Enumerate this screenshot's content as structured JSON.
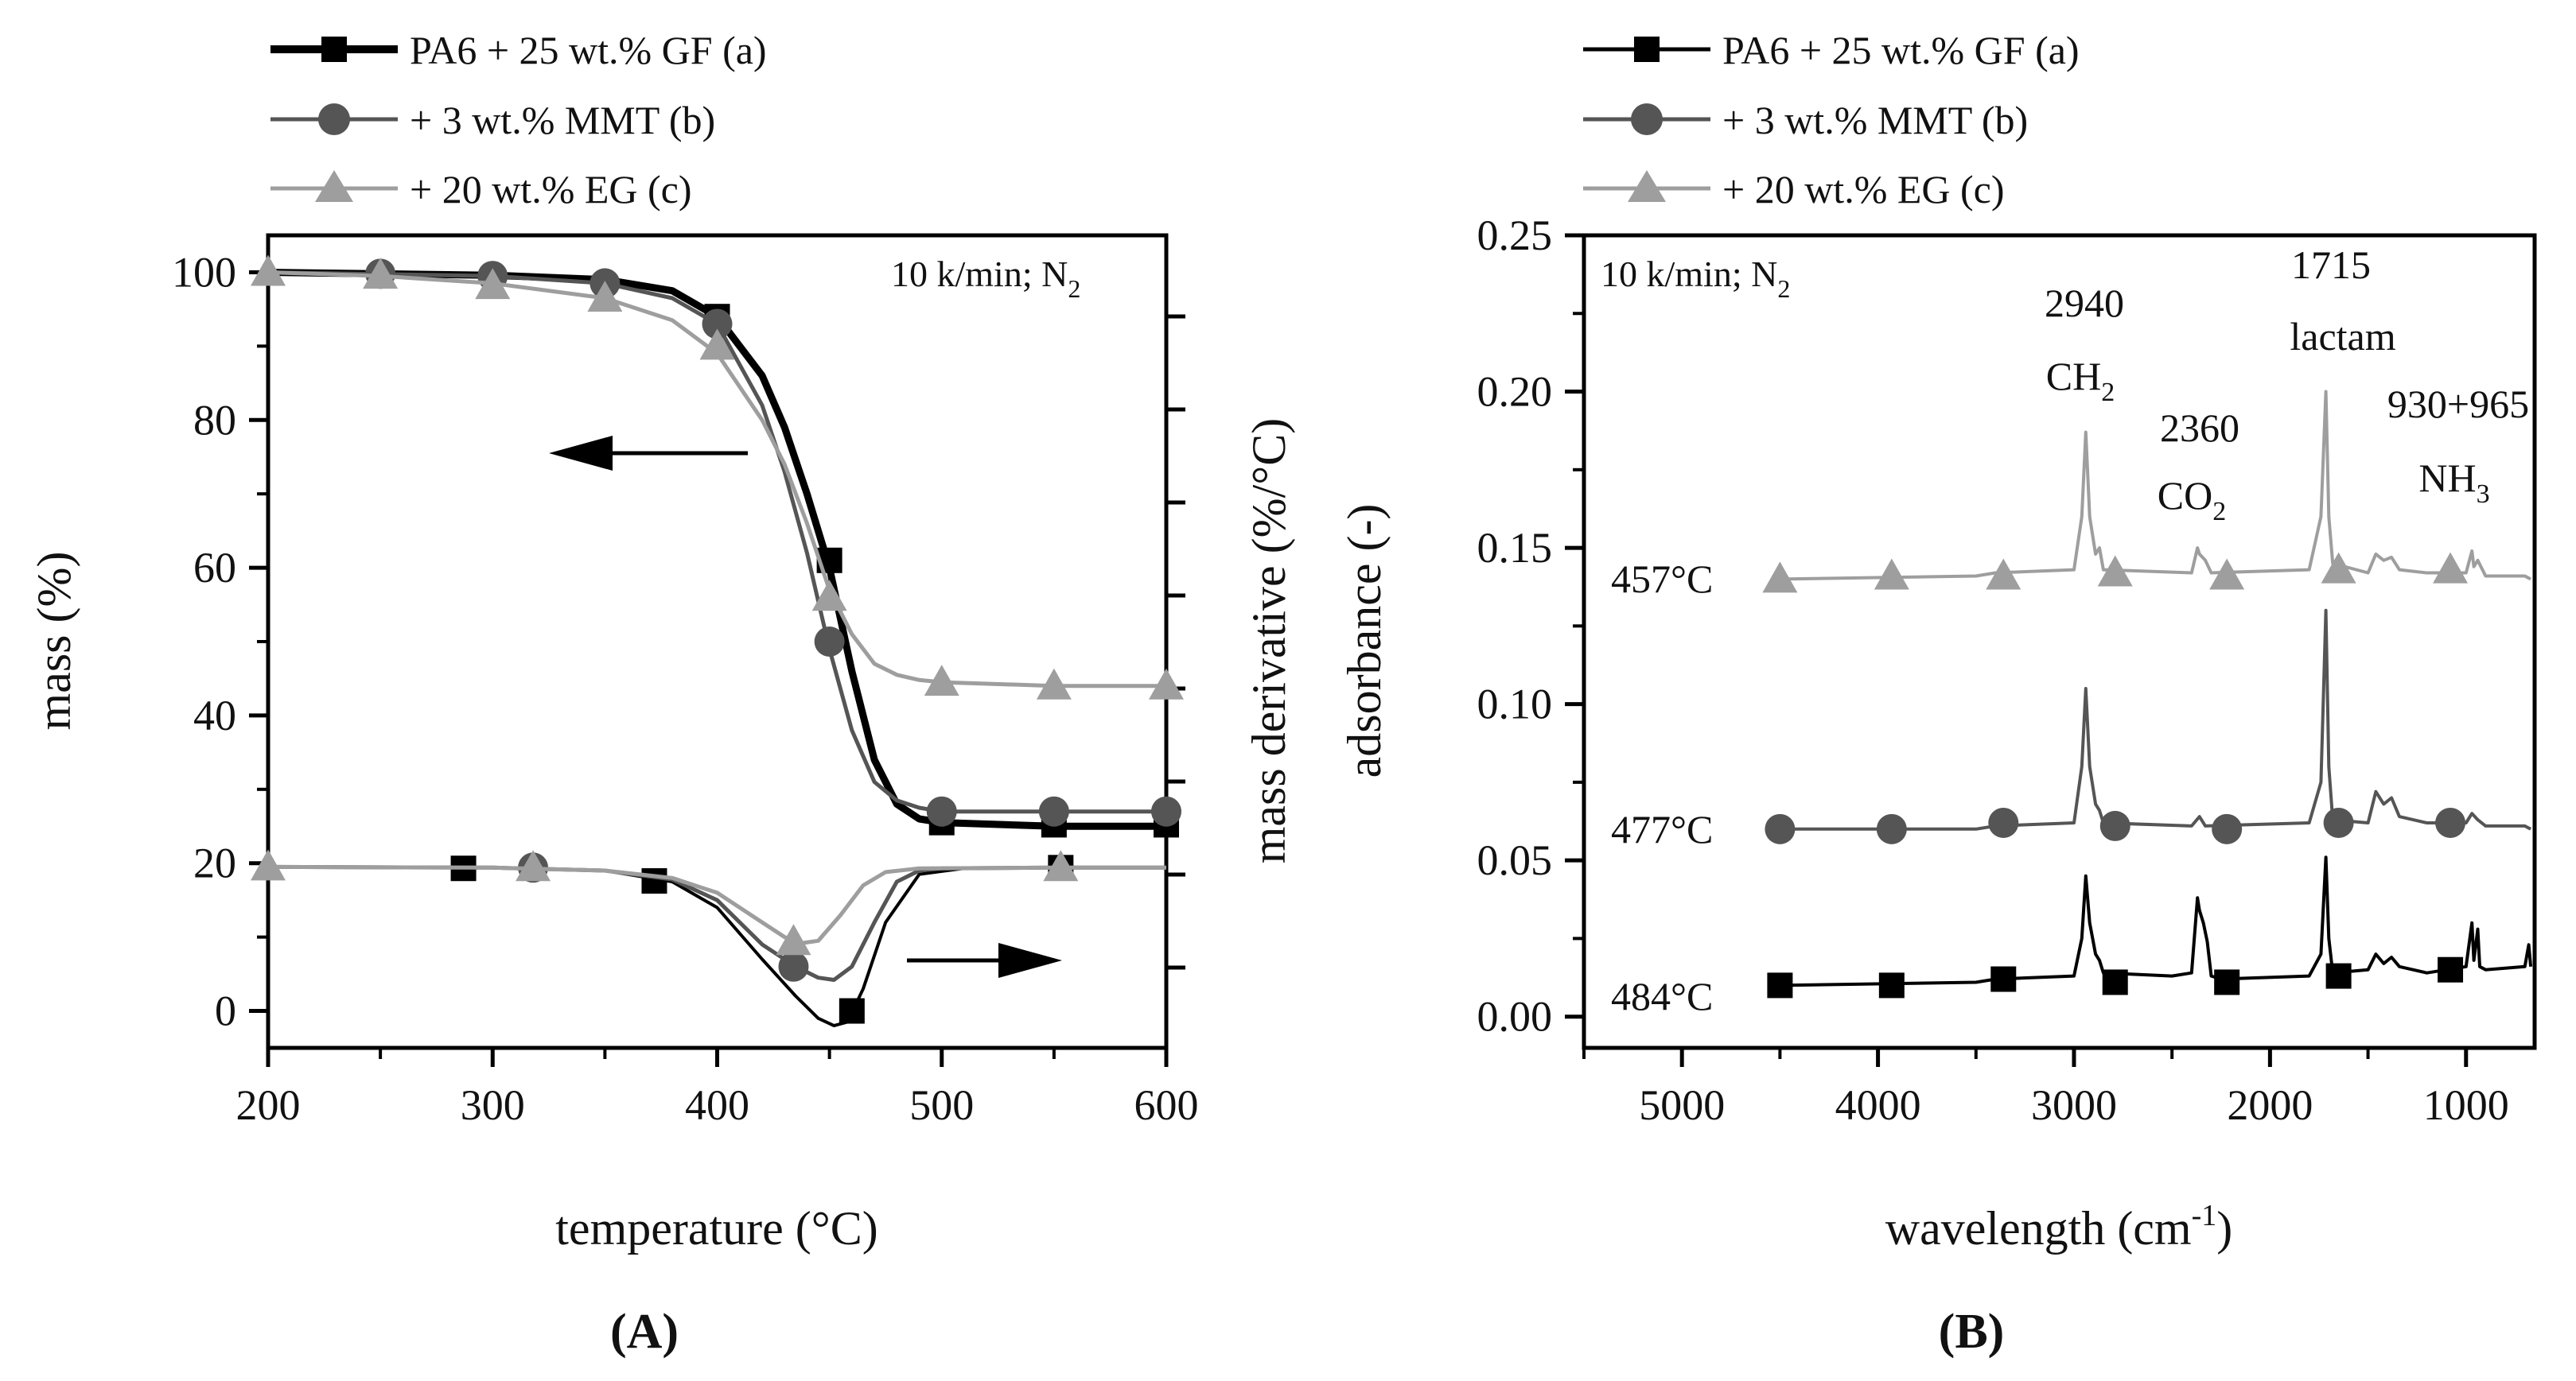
{
  "chart_data": [
    {
      "id": "A",
      "type": "line",
      "panel_label": "(A)",
      "title": "",
      "xlabel": "temperature (°C)",
      "ylabel": "mass (%)",
      "y2label": "mass derivative (%/°C)",
      "xlim": [
        200,
        600
      ],
      "ylim": [
        -5,
        105
      ],
      "xticks": [
        "200",
        "300",
        "400",
        "500",
        "600"
      ],
      "yticks": [
        "0",
        "20",
        "40",
        "60",
        "80",
        "100"
      ],
      "annotation": "10 k/min; N",
      "annotation_sub": "2",
      "legend": [
        {
          "name": "PA6 + 25 wt.% GF (a)",
          "color": "#000000",
          "marker": "square"
        },
        {
          "name": "+ 3 wt.% MMT (b)",
          "color": "#555555",
          "marker": "circle"
        },
        {
          "name": "+ 20 wt.% EG (c)",
          "color": "#9e9e9e",
          "marker": "triangle"
        }
      ],
      "series": [
        {
          "name": "PA6 + 25 wt.% GF (a) mass",
          "color": "#000000",
          "marker": "square",
          "x": [
            200,
            300,
            350,
            380,
            400,
            420,
            430,
            440,
            450,
            460,
            470,
            480,
            490,
            500,
            550,
            600
          ],
          "y": [
            100,
            99.6,
            99,
            97.5,
            94,
            86,
            79,
            70,
            60,
            46,
            34,
            28,
            26,
            25.5,
            25,
            25
          ],
          "marker_x": [
            400,
            450,
            500,
            550,
            600
          ],
          "marker_y": [
            94,
            61,
            25.5,
            25.2,
            25.2
          ]
        },
        {
          "name": "+ 3 wt.% MMT (b) mass",
          "color": "#555555",
          "marker": "circle",
          "x": [
            200,
            300,
            350,
            380,
            400,
            420,
            430,
            440,
            450,
            460,
            470,
            480,
            490,
            500,
            550,
            600
          ],
          "y": [
            100,
            99.5,
            98.5,
            96.5,
            93,
            82,
            73,
            62,
            49,
            38,
            31,
            28.5,
            27.5,
            27,
            27,
            27
          ],
          "marker_x": [
            250,
            300,
            350,
            400,
            450,
            500,
            550,
            600
          ],
          "marker_y": [
            99.8,
            99.5,
            98.5,
            93,
            50,
            27,
            27,
            27
          ]
        },
        {
          "name": "+ 20 wt.% EG (c) mass",
          "color": "#9e9e9e",
          "marker": "triangle",
          "x": [
            200,
            250,
            300,
            350,
            380,
            400,
            420,
            430,
            440,
            450,
            460,
            470,
            480,
            490,
            500,
            550,
            600
          ],
          "y": [
            100,
            99.5,
            98.5,
            96.5,
            93.5,
            89,
            80,
            74,
            66,
            57,
            51,
            47,
            45.5,
            44.8,
            44.5,
            44,
            44
          ],
          "marker_x": [
            200,
            250,
            300,
            350,
            400,
            450,
            500,
            550,
            600
          ],
          "marker_y": [
            100,
            99.6,
            98.2,
            96.5,
            90,
            56,
            44.5,
            44,
            44
          ]
        },
        {
          "name": "PA6 + 25 wt.% GF (a) derivative",
          "color": "#000000",
          "marker": "square",
          "x": [
            200,
            300,
            350,
            380,
            400,
            420,
            435,
            445,
            452,
            458,
            465,
            475,
            490,
            510,
            550,
            600
          ],
          "y": [
            19.5,
            19.4,
            19,
            17.5,
            14,
            7,
            2,
            -1,
            -2,
            -1.5,
            3,
            12,
            18.5,
            19.3,
            19.4,
            19.4
          ],
          "marker_x": [
            287,
            372,
            460,
            553
          ],
          "marker_y": [
            19.3,
            17.6,
            0,
            19.4
          ]
        },
        {
          "name": "+ 3 wt.% MMT (b) derivative",
          "color": "#555555",
          "marker": "circle",
          "x": [
            200,
            300,
            350,
            380,
            400,
            420,
            435,
            445,
            452,
            460,
            470,
            480,
            490,
            500,
            550,
            600
          ],
          "y": [
            19.5,
            19.4,
            19,
            17.8,
            15,
            9,
            6,
            4.5,
            4.2,
            6,
            12,
            17.5,
            19,
            19.3,
            19.4,
            19.4
          ],
          "marker_x": [
            318,
            434
          ],
          "marker_y": [
            19.4,
            6
          ]
        },
        {
          "name": "+ 20 wt.% EG (c) derivative",
          "color": "#9e9e9e",
          "marker": "triangle",
          "x": [
            200,
            300,
            350,
            380,
            400,
            420,
            430,
            438,
            445,
            455,
            465,
            475,
            490,
            550,
            600
          ],
          "y": [
            19.5,
            19.4,
            19,
            18,
            16,
            12,
            10,
            9.2,
            9.5,
            13,
            17,
            18.8,
            19.3,
            19.4,
            19.4
          ],
          "marker_x": [
            200,
            318,
            434,
            553
          ],
          "marker_y": [
            19.5,
            19.4,
            9.4,
            19.4
          ]
        }
      ]
    },
    {
      "id": "B",
      "type": "line",
      "panel_label": "(B)",
      "title": "",
      "xlabel": "wavelength (cm",
      "xlabel_sup": "-1",
      "xlabel_end": ")",
      "ylabel": "adsorbance (-)",
      "xlim": [
        5500,
        650
      ],
      "ylim": [
        -0.01,
        0.25
      ],
      "xticks": [
        "5000",
        "4000",
        "3000",
        "2000",
        "1000"
      ],
      "yticks": [
        "0.00",
        "0.05",
        "0.10",
        "0.15",
        "0.20",
        "0.25"
      ],
      "annotation": "10 k/min; N",
      "annotation_sub": "2",
      "peak_labels": [
        {
          "value": "2940",
          "species": "CH",
          "species_sub": "2"
        },
        {
          "value": "2360",
          "species": "CO",
          "species_sub": "2"
        },
        {
          "value": "1715",
          "species": "lactam",
          "species_sub": ""
        },
        {
          "value": "930+965",
          "species": "NH",
          "species_sub": "3"
        }
      ],
      "legend": [
        {
          "name": "PA6 + 25 wt.% GF (a)",
          "color": "#000000",
          "marker": "square"
        },
        {
          "name": "+ 3 wt.% MMT (b)",
          "color": "#555555",
          "marker": "circle"
        },
        {
          "name": "+ 20 wt.% EG (c)",
          "color": "#9e9e9e",
          "marker": "triangle"
        }
      ],
      "series": [
        {
          "name": "PA6 + 25 wt.% GF (a)",
          "temperature_label": "484°C",
          "color": "#000000",
          "marker": "square",
          "baseline": 0.01,
          "x": [
            4500,
            3500,
            3400,
            3000,
            2960,
            2940,
            2920,
            2890,
            2870,
            2850,
            2500,
            2400,
            2370,
            2360,
            2340,
            2320,
            2300,
            2250,
            1800,
            1740,
            1715,
            1700,
            1680,
            1500,
            1460,
            1420,
            1380,
            1340,
            1200,
            1000,
            970,
            960,
            940,
            930,
            900,
            700,
            680,
            670
          ],
          "y": [
            0.01,
            0.011,
            0.012,
            0.013,
            0.025,
            0.045,
            0.03,
            0.02,
            0.018,
            0.014,
            0.013,
            0.014,
            0.038,
            0.034,
            0.03,
            0.024,
            0.013,
            0.012,
            0.013,
            0.02,
            0.051,
            0.025,
            0.014,
            0.015,
            0.02,
            0.017,
            0.019,
            0.016,
            0.014,
            0.016,
            0.03,
            0.018,
            0.028,
            0.016,
            0.015,
            0.016,
            0.023,
            0.016
          ],
          "marker_x": [
            4500,
            3930,
            3360,
            2790,
            2220,
            1650,
            1080
          ],
          "marker_y": [
            0.01,
            0.01,
            0.012,
            0.011,
            0.011,
            0.013,
            0.015
          ]
        },
        {
          "name": "+ 3 wt.% MMT (b)",
          "temperature_label": "477°C",
          "color": "#555555",
          "marker": "circle",
          "baseline": 0.06,
          "x": [
            4500,
            3500,
            3400,
            3000,
            2960,
            2940,
            2920,
            2890,
            2870,
            2850,
            2400,
            2360,
            2330,
            1800,
            1740,
            1715,
            1700,
            1680,
            1500,
            1460,
            1420,
            1380,
            1340,
            1200,
            1000,
            970,
            940,
            900,
            700,
            670
          ],
          "y": [
            0.06,
            0.06,
            0.061,
            0.062,
            0.08,
            0.105,
            0.08,
            0.068,
            0.066,
            0.062,
            0.061,
            0.064,
            0.061,
            0.062,
            0.075,
            0.13,
            0.08,
            0.063,
            0.062,
            0.072,
            0.068,
            0.07,
            0.064,
            0.062,
            0.062,
            0.065,
            0.063,
            0.061,
            0.061,
            0.06
          ],
          "marker_x": [
            4500,
            3930,
            3360,
            2790,
            2220,
            1650,
            1080
          ],
          "marker_y": [
            0.06,
            0.06,
            0.062,
            0.061,
            0.06,
            0.062,
            0.062
          ]
        },
        {
          "name": "+ 20 wt.% EG (c)",
          "temperature_label": "457°C",
          "color": "#9e9e9e",
          "marker": "triangle",
          "baseline": 0.14,
          "x": [
            4500,
            3500,
            3400,
            3000,
            2960,
            2940,
            2920,
            2890,
            2870,
            2850,
            2400,
            2370,
            2360,
            2330,
            2300,
            1800,
            1740,
            1715,
            1700,
            1680,
            1500,
            1460,
            1420,
            1380,
            1340,
            1200,
            1000,
            970,
            960,
            940,
            900,
            700,
            670
          ],
          "y": [
            0.14,
            0.141,
            0.142,
            0.143,
            0.16,
            0.187,
            0.16,
            0.148,
            0.15,
            0.143,
            0.142,
            0.15,
            0.148,
            0.146,
            0.142,
            0.143,
            0.16,
            0.2,
            0.16,
            0.145,
            0.142,
            0.148,
            0.146,
            0.147,
            0.143,
            0.142,
            0.142,
            0.149,
            0.144,
            0.146,
            0.141,
            0.141,
            0.14
          ],
          "marker_x": [
            4500,
            3930,
            3360,
            2790,
            2220,
            1650,
            1080
          ],
          "marker_y": [
            0.14,
            0.141,
            0.141,
            0.142,
            0.141,
            0.143,
            0.143
          ]
        }
      ]
    }
  ]
}
